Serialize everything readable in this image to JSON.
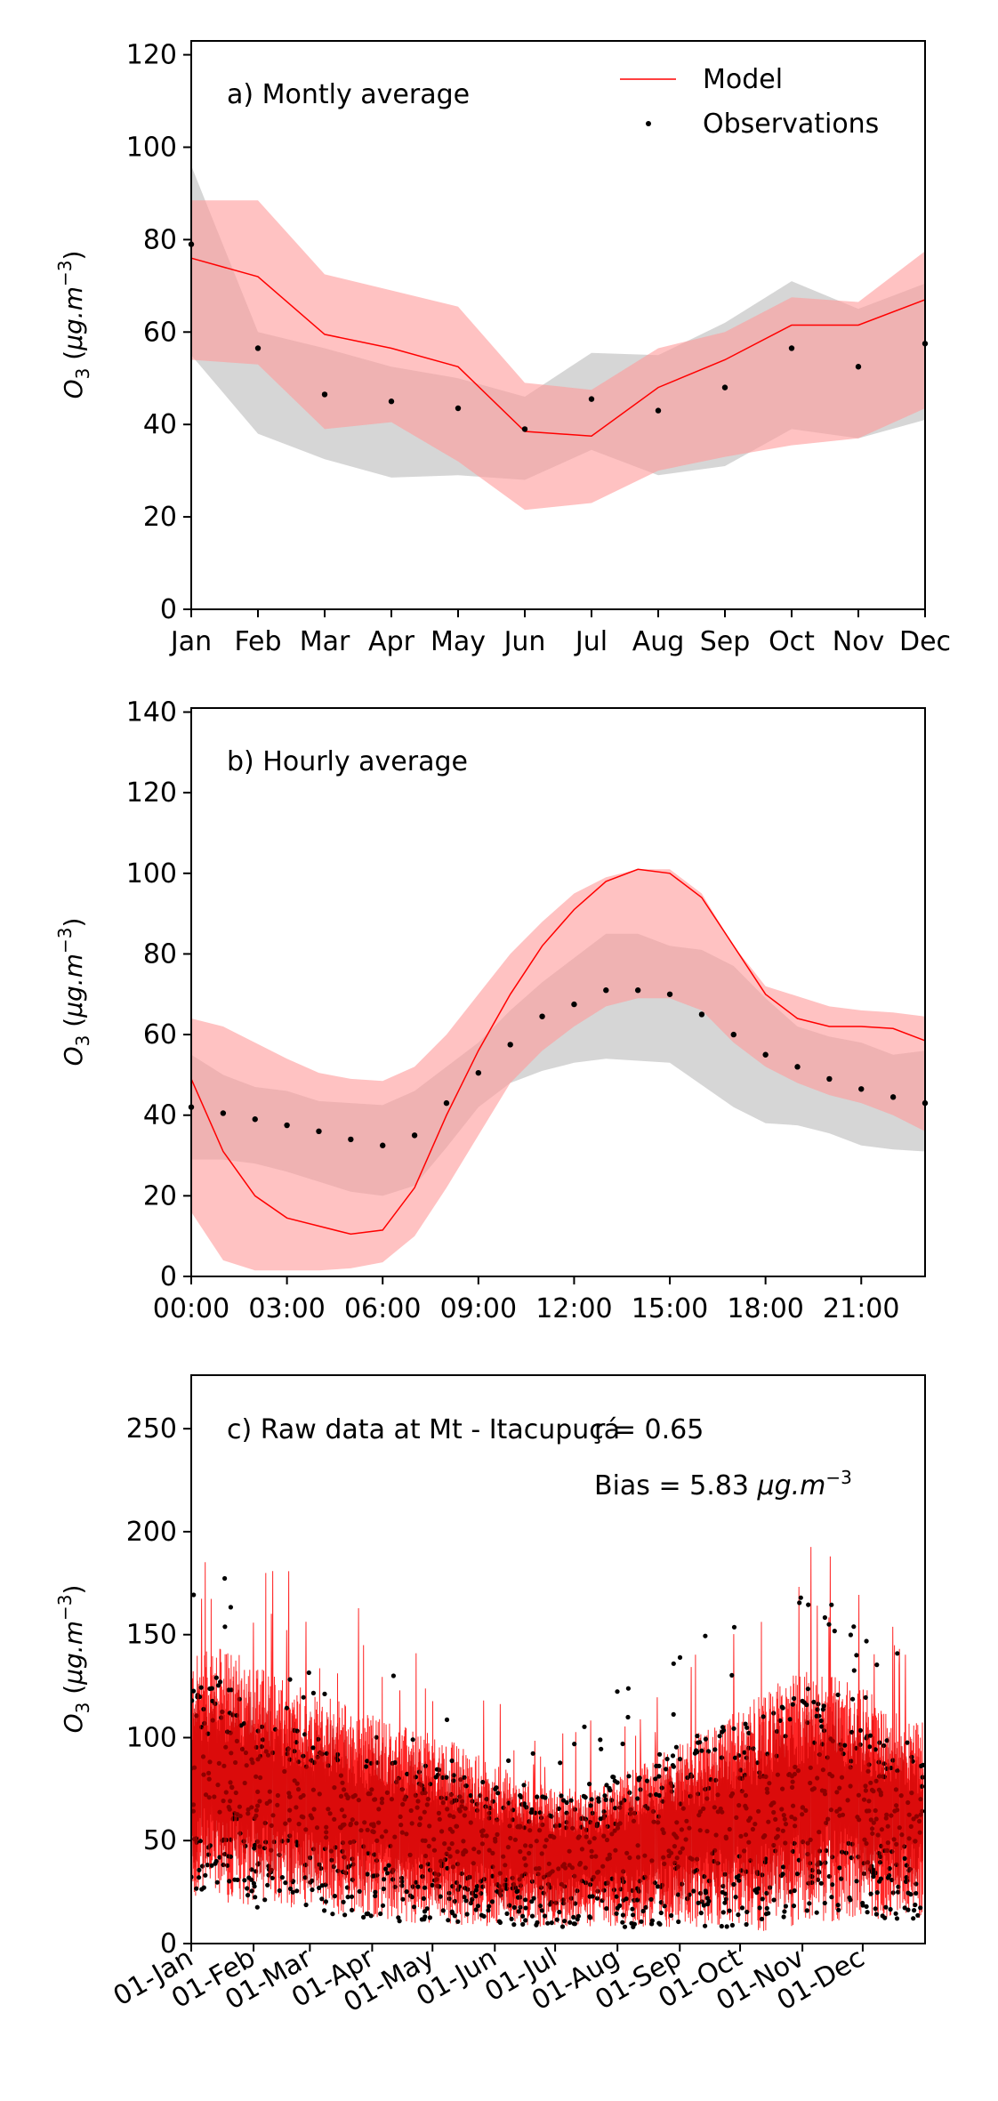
{
  "chart_data": [
    {
      "type": "line",
      "panel_label": "a) Montly average",
      "ylabel": "O3 (μg.m⁻³)",
      "xlabel": "",
      "ylim": [
        0,
        123
      ],
      "yticks": [
        0,
        20,
        40,
        60,
        80,
        100,
        120
      ],
      "categories": [
        "Jan",
        "Feb",
        "Mar",
        "Apr",
        "May",
        "Jun",
        "Jul",
        "Aug",
        "Sep",
        "Oct",
        "Nov",
        "Dec"
      ],
      "legend": {
        "position": "top-right",
        "model_label": "Model",
        "obs_label": "Observations"
      },
      "grid": false,
      "colors": {
        "model": "#ff0000",
        "model_band": "#ff9a9a",
        "obs": "#000000",
        "obs_band": "#c8c8c8"
      },
      "series": [
        {
          "name": "Model",
          "kind": "line",
          "values": [
            76,
            72,
            59.5,
            56.5,
            52.5,
            38.5,
            37.5,
            48,
            54,
            61.5,
            61.5,
            67
          ]
        },
        {
          "name": "Observations",
          "kind": "points",
          "values": [
            79,
            56.5,
            46.5,
            45,
            43.5,
            39,
            45.5,
            43,
            48,
            56.5,
            52.5,
            57.5
          ]
        }
      ],
      "bands": [
        {
          "for": "Observations",
          "lower": [
            55,
            38,
            32.5,
            28.5,
            29,
            28,
            34.5,
            29,
            31,
            39,
            37,
            41
          ],
          "upper": [
            96,
            60,
            56.5,
            52.5,
            50,
            46,
            55.5,
            55,
            62,
            71,
            65,
            70.5
          ]
        },
        {
          "for": "Model",
          "lower": [
            54,
            53,
            39,
            40.5,
            32,
            21.5,
            23,
            30,
            33,
            35.5,
            37,
            43.5
          ],
          "upper": [
            88.5,
            88.5,
            72.5,
            69,
            65.5,
            49,
            47.5,
            56.5,
            60,
            67.5,
            66.5,
            77.5
          ]
        }
      ]
    },
    {
      "type": "line",
      "panel_label": "b) Hourly average",
      "ylabel": "O3 (μg.m⁻³)",
      "xlabel": "",
      "ylim": [
        0,
        141
      ],
      "yticks": [
        0,
        20,
        40,
        60,
        80,
        100,
        120,
        140
      ],
      "x": [
        0,
        1,
        2,
        3,
        4,
        5,
        6,
        7,
        8,
        9,
        10,
        11,
        12,
        13,
        14,
        15,
        16,
        17,
        18,
        19,
        20,
        21,
        22,
        23
      ],
      "xlim": [
        0,
        23
      ],
      "xticks": [
        0,
        3,
        6,
        9,
        12,
        15,
        18,
        21
      ],
      "xtick_labels": [
        "00:00",
        "03:00",
        "06:00",
        "09:00",
        "12:00",
        "15:00",
        "18:00",
        "21:00"
      ],
      "grid": false,
      "colors": {
        "model": "#ff0000",
        "model_band": "#ff9a9a",
        "obs": "#000000",
        "obs_band": "#c8c8c8"
      },
      "series": [
        {
          "name": "Model",
          "kind": "line",
          "values": [
            49,
            31,
            20,
            14.5,
            12.5,
            10.5,
            11.5,
            22,
            40,
            56,
            70,
            82,
            91,
            98,
            101,
            100,
            94,
            82,
            70,
            64,
            62,
            62,
            61.5,
            58.5
          ]
        },
        {
          "name": "Observations",
          "kind": "points",
          "values": [
            42,
            40.5,
            39,
            37.5,
            36,
            34,
            32.5,
            35,
            43,
            50.5,
            57.5,
            64.5,
            67.5,
            71,
            71,
            70,
            65,
            60,
            55,
            52,
            49,
            46.5,
            44.5,
            43
          ]
        }
      ],
      "bands": [
        {
          "for": "Observations",
          "lower": [
            29,
            29,
            28,
            26,
            23.5,
            21,
            20,
            22.5,
            32,
            42,
            48,
            51,
            53,
            54,
            53.5,
            53,
            47.5,
            42,
            38,
            37.5,
            35.5,
            32.5,
            31.5,
            31
          ],
          "upper": [
            55,
            50,
            47,
            46,
            43.5,
            43,
            42.5,
            46,
            52,
            58,
            66,
            73,
            79,
            85,
            85,
            82,
            81,
            77,
            69,
            62,
            59.5,
            58,
            55,
            56
          ]
        },
        {
          "for": "Model",
          "lower": [
            16,
            4,
            1.5,
            1.5,
            1.5,
            2,
            3.5,
            10,
            22,
            35,
            48,
            56,
            62,
            67,
            69,
            69,
            66,
            58,
            52,
            48,
            45,
            43,
            40,
            36
          ]
        },
        {
          "for": "Model-upper",
          "upper": [
            64,
            62,
            58,
            54,
            50.5,
            49,
            48.5,
            52,
            60,
            70,
            80,
            88,
            95,
            99,
            101,
            101,
            95,
            82,
            72,
            69.5,
            67,
            66,
            65.5,
            64.5
          ]
        }
      ]
    },
    {
      "type": "line",
      "panel_label": "c) Raw data at Mt - Itacupuçá",
      "annotation_r": "r = 0.65",
      "annotation_bias_prefix": "Bias = 5.83 ",
      "annotation_bias_unit": "μg.m⁻³",
      "ylabel": "O3 (μg.m⁻³)",
      "xlabel": "",
      "ylim": [
        0,
        276
      ],
      "yticks": [
        0,
        50,
        100,
        150,
        200,
        250
      ],
      "xlim": [
        0,
        365
      ],
      "xticks": [
        0,
        31,
        59,
        90,
        120,
        151,
        181,
        212,
        243,
        273,
        304,
        334
      ],
      "xtick_labels": [
        "01-Jan",
        "01-Feb",
        "01-Mar",
        "01-Apr",
        "01-May",
        "01-Jun",
        "01-Jul",
        "01-Aug",
        "01-Sep",
        "01-Oct",
        "01-Nov",
        "01-Dec"
      ],
      "grid": false,
      "colors": {
        "model": "#ff0000",
        "obs": "#000000",
        "model_dense": "#cc0000"
      },
      "series": [
        {
          "name": "Model",
          "kind": "dense-line",
          "day": [
            0,
            15,
            30,
            45,
            60,
            75,
            90,
            105,
            120,
            135,
            150,
            165,
            180,
            195,
            210,
            225,
            240,
            255,
            270,
            285,
            300,
            315,
            330,
            345,
            364
          ],
          "center": [
            80,
            82,
            78,
            72,
            70,
            66,
            62,
            58,
            56,
            52,
            48,
            44,
            42,
            42,
            44,
            48,
            52,
            56,
            60,
            64,
            70,
            72,
            70,
            64,
            60
          ],
          "amplitude": [
            60,
            62,
            60,
            56,
            54,
            52,
            50,
            48,
            46,
            44,
            40,
            36,
            34,
            34,
            36,
            40,
            44,
            48,
            52,
            58,
            62,
            62,
            58,
            52,
            48
          ]
        },
        {
          "name": "Observations",
          "kind": "dense-points",
          "day": [
            0,
            15,
            30,
            45,
            60,
            75,
            90,
            105,
            120,
            135,
            150,
            165,
            180,
            195,
            210,
            225,
            240,
            255,
            270,
            285,
            300,
            315,
            330,
            345,
            364
          ],
          "center": [
            75,
            78,
            66,
            60,
            58,
            55,
            52,
            50,
            48,
            46,
            44,
            40,
            40,
            42,
            46,
            48,
            52,
            56,
            58,
            62,
            66,
            64,
            60,
            56,
            54
          ],
          "amplitude": [
            50,
            52,
            50,
            46,
            44,
            42,
            40,
            40,
            38,
            36,
            34,
            32,
            32,
            34,
            38,
            40,
            44,
            48,
            50,
            52,
            54,
            52,
            48,
            44,
            42
          ]
        }
      ]
    }
  ]
}
